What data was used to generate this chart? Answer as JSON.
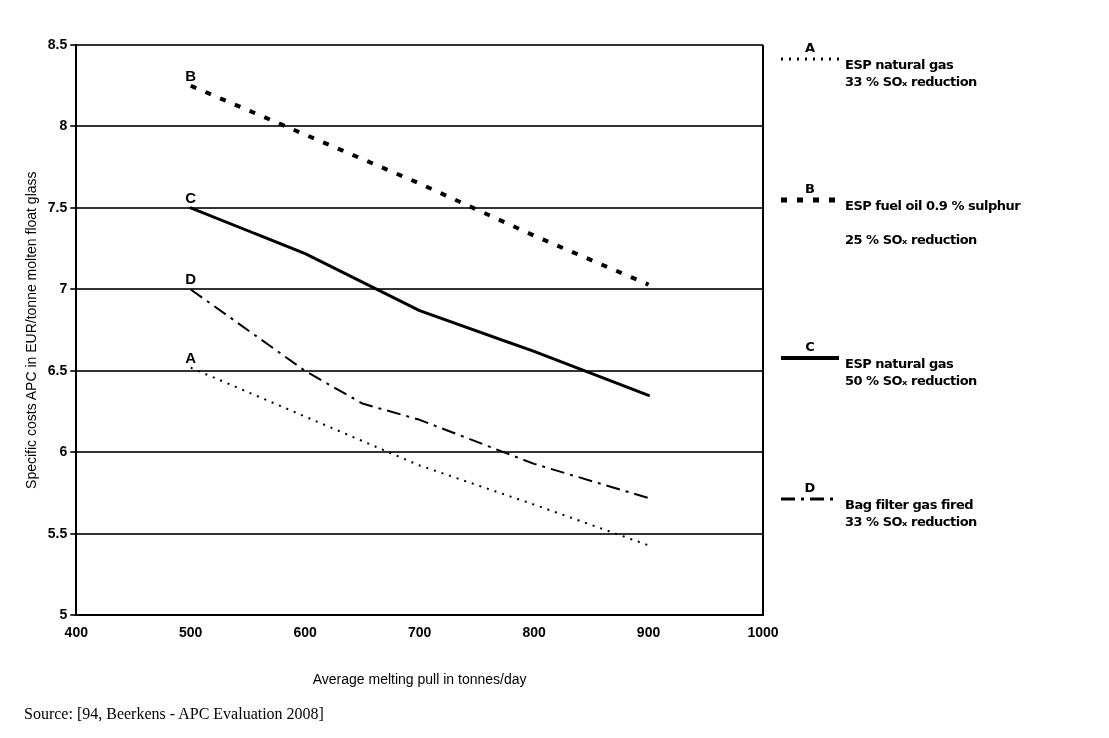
{
  "chart_data": {
    "type": "line",
    "xlabel": "Average melting pull in tonnes/day",
    "ylabel": "Specific costs APC in EUR/tonne molten float glass",
    "xlim": [
      400,
      1000
    ],
    "xticks": [
      400,
      500,
      600,
      700,
      800,
      900,
      1000
    ],
    "ylim": [
      5,
      8.5
    ],
    "yticks": [
      5,
      5.5,
      6,
      6.5,
      7,
      7.5,
      8,
      8.5
    ],
    "grid": "y",
    "legend": "right",
    "marker": "none",
    "series": [
      {
        "name": "ESP natural gas\n33 % SOₓ reduction",
        "color": "#000000",
        "line_style": "dotted",
        "x": [
          500,
          600,
          700,
          800,
          900
        ],
        "values": [
          6.52,
          6.22,
          5.92,
          5.68,
          5.43
        ]
      },
      {
        "name": "ESP fuel oil 0.9 % sulphur\n\n25 % SOₓ reduction",
        "color": "#000000",
        "line_style": "dashed",
        "x": [
          500,
          600,
          700,
          800,
          900
        ],
        "values": [
          8.25,
          7.95,
          7.65,
          7.33,
          7.03
        ]
      },
      {
        "name": "ESP natural gas\n50 % SOₓ reduction",
        "color": "#000000",
        "line_style": "solid",
        "x": [
          500,
          600,
          700,
          800,
          900
        ],
        "values": [
          7.5,
          7.22,
          6.87,
          6.62,
          6.35
        ]
      },
      {
        "name": "Bag filter gas fired\n33 % SOₓ reduction",
        "color": "#000000",
        "line_style": "dashdot",
        "x": [
          500,
          600,
          650,
          700,
          800,
          900
        ],
        "values": [
          7.0,
          6.5,
          6.3,
          6.2,
          5.93,
          5.72
        ]
      }
    ],
    "annotations": [
      "A",
      "B",
      "C",
      "D",
      "Source: [94, Beerkens - APC Evaluation 2008]"
    ]
  }
}
